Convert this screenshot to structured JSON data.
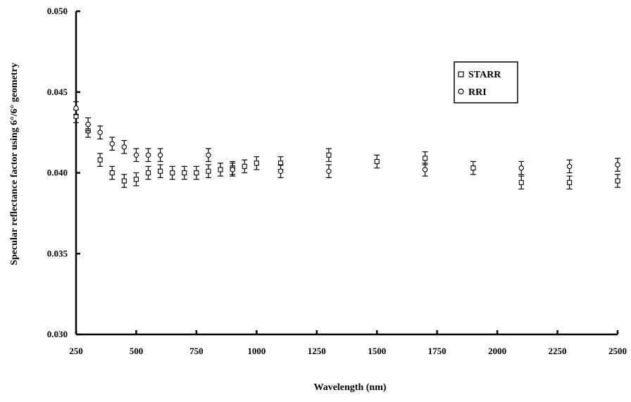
{
  "chart_data": {
    "type": "scatter",
    "title": "",
    "xlabel": "Wavelength (nm)",
    "ylabel": "Specular reflectance factor using 6°/6° geometry",
    "xlim": [
      250,
      2500
    ],
    "ylim": [
      0.03,
      0.05
    ],
    "xticks": [
      "250",
      "500",
      "750",
      "1000",
      "1250",
      "1500",
      "1750",
      "2000",
      "2250",
      "2500"
    ],
    "yticks": [
      "0.030",
      "0.035",
      "0.040",
      "0.045",
      "0.050"
    ],
    "grid": false,
    "legend_position": "top-right",
    "series": [
      {
        "name": "STARR",
        "marker": "square",
        "x": [
          250,
          300,
          350,
          400,
          450,
          500,
          550,
          600,
          650,
          700,
          750,
          800,
          850,
          900,
          950,
          1000,
          1100,
          1300,
          1500,
          1700,
          1900,
          2100,
          2300,
          2500
        ],
        "y": [
          0.0435,
          0.0426,
          0.0408,
          0.04,
          0.0395,
          0.0396,
          0.04,
          0.0401,
          0.04,
          0.04,
          0.04,
          0.0401,
          0.0402,
          0.0403,
          0.0404,
          0.0406,
          0.0406,
          0.0411,
          0.0407,
          0.0409,
          0.0403,
          0.0394,
          0.0394,
          0.0395
        ],
        "err": [
          0.0004,
          0.0004,
          0.0004,
          0.0004,
          0.0004,
          0.0004,
          0.0004,
          0.0004,
          0.0004,
          0.0004,
          0.0004,
          0.0004,
          0.0004,
          0.0004,
          0.0004,
          0.0004,
          0.0004,
          0.0004,
          0.0004,
          0.0004,
          0.0004,
          0.0004,
          0.0004,
          0.0004
        ]
      },
      {
        "name": "RRI",
        "marker": "circle",
        "x": [
          250,
          300,
          350,
          400,
          450,
          500,
          550,
          600,
          800,
          900,
          1100,
          1300,
          1700,
          2100,
          2300,
          2500
        ],
        "y": [
          0.044,
          0.043,
          0.0425,
          0.0418,
          0.0416,
          0.0411,
          0.0411,
          0.0411,
          0.0411,
          0.0402,
          0.0401,
          0.0401,
          0.0402,
          0.0403,
          0.0404,
          0.0405
        ],
        "err": [
          0.0004,
          0.0004,
          0.0004,
          0.0004,
          0.0004,
          0.0004,
          0.0004,
          0.0004,
          0.0004,
          0.0004,
          0.0004,
          0.0004,
          0.0004,
          0.0004,
          0.0004,
          0.0004
        ]
      }
    ]
  }
}
